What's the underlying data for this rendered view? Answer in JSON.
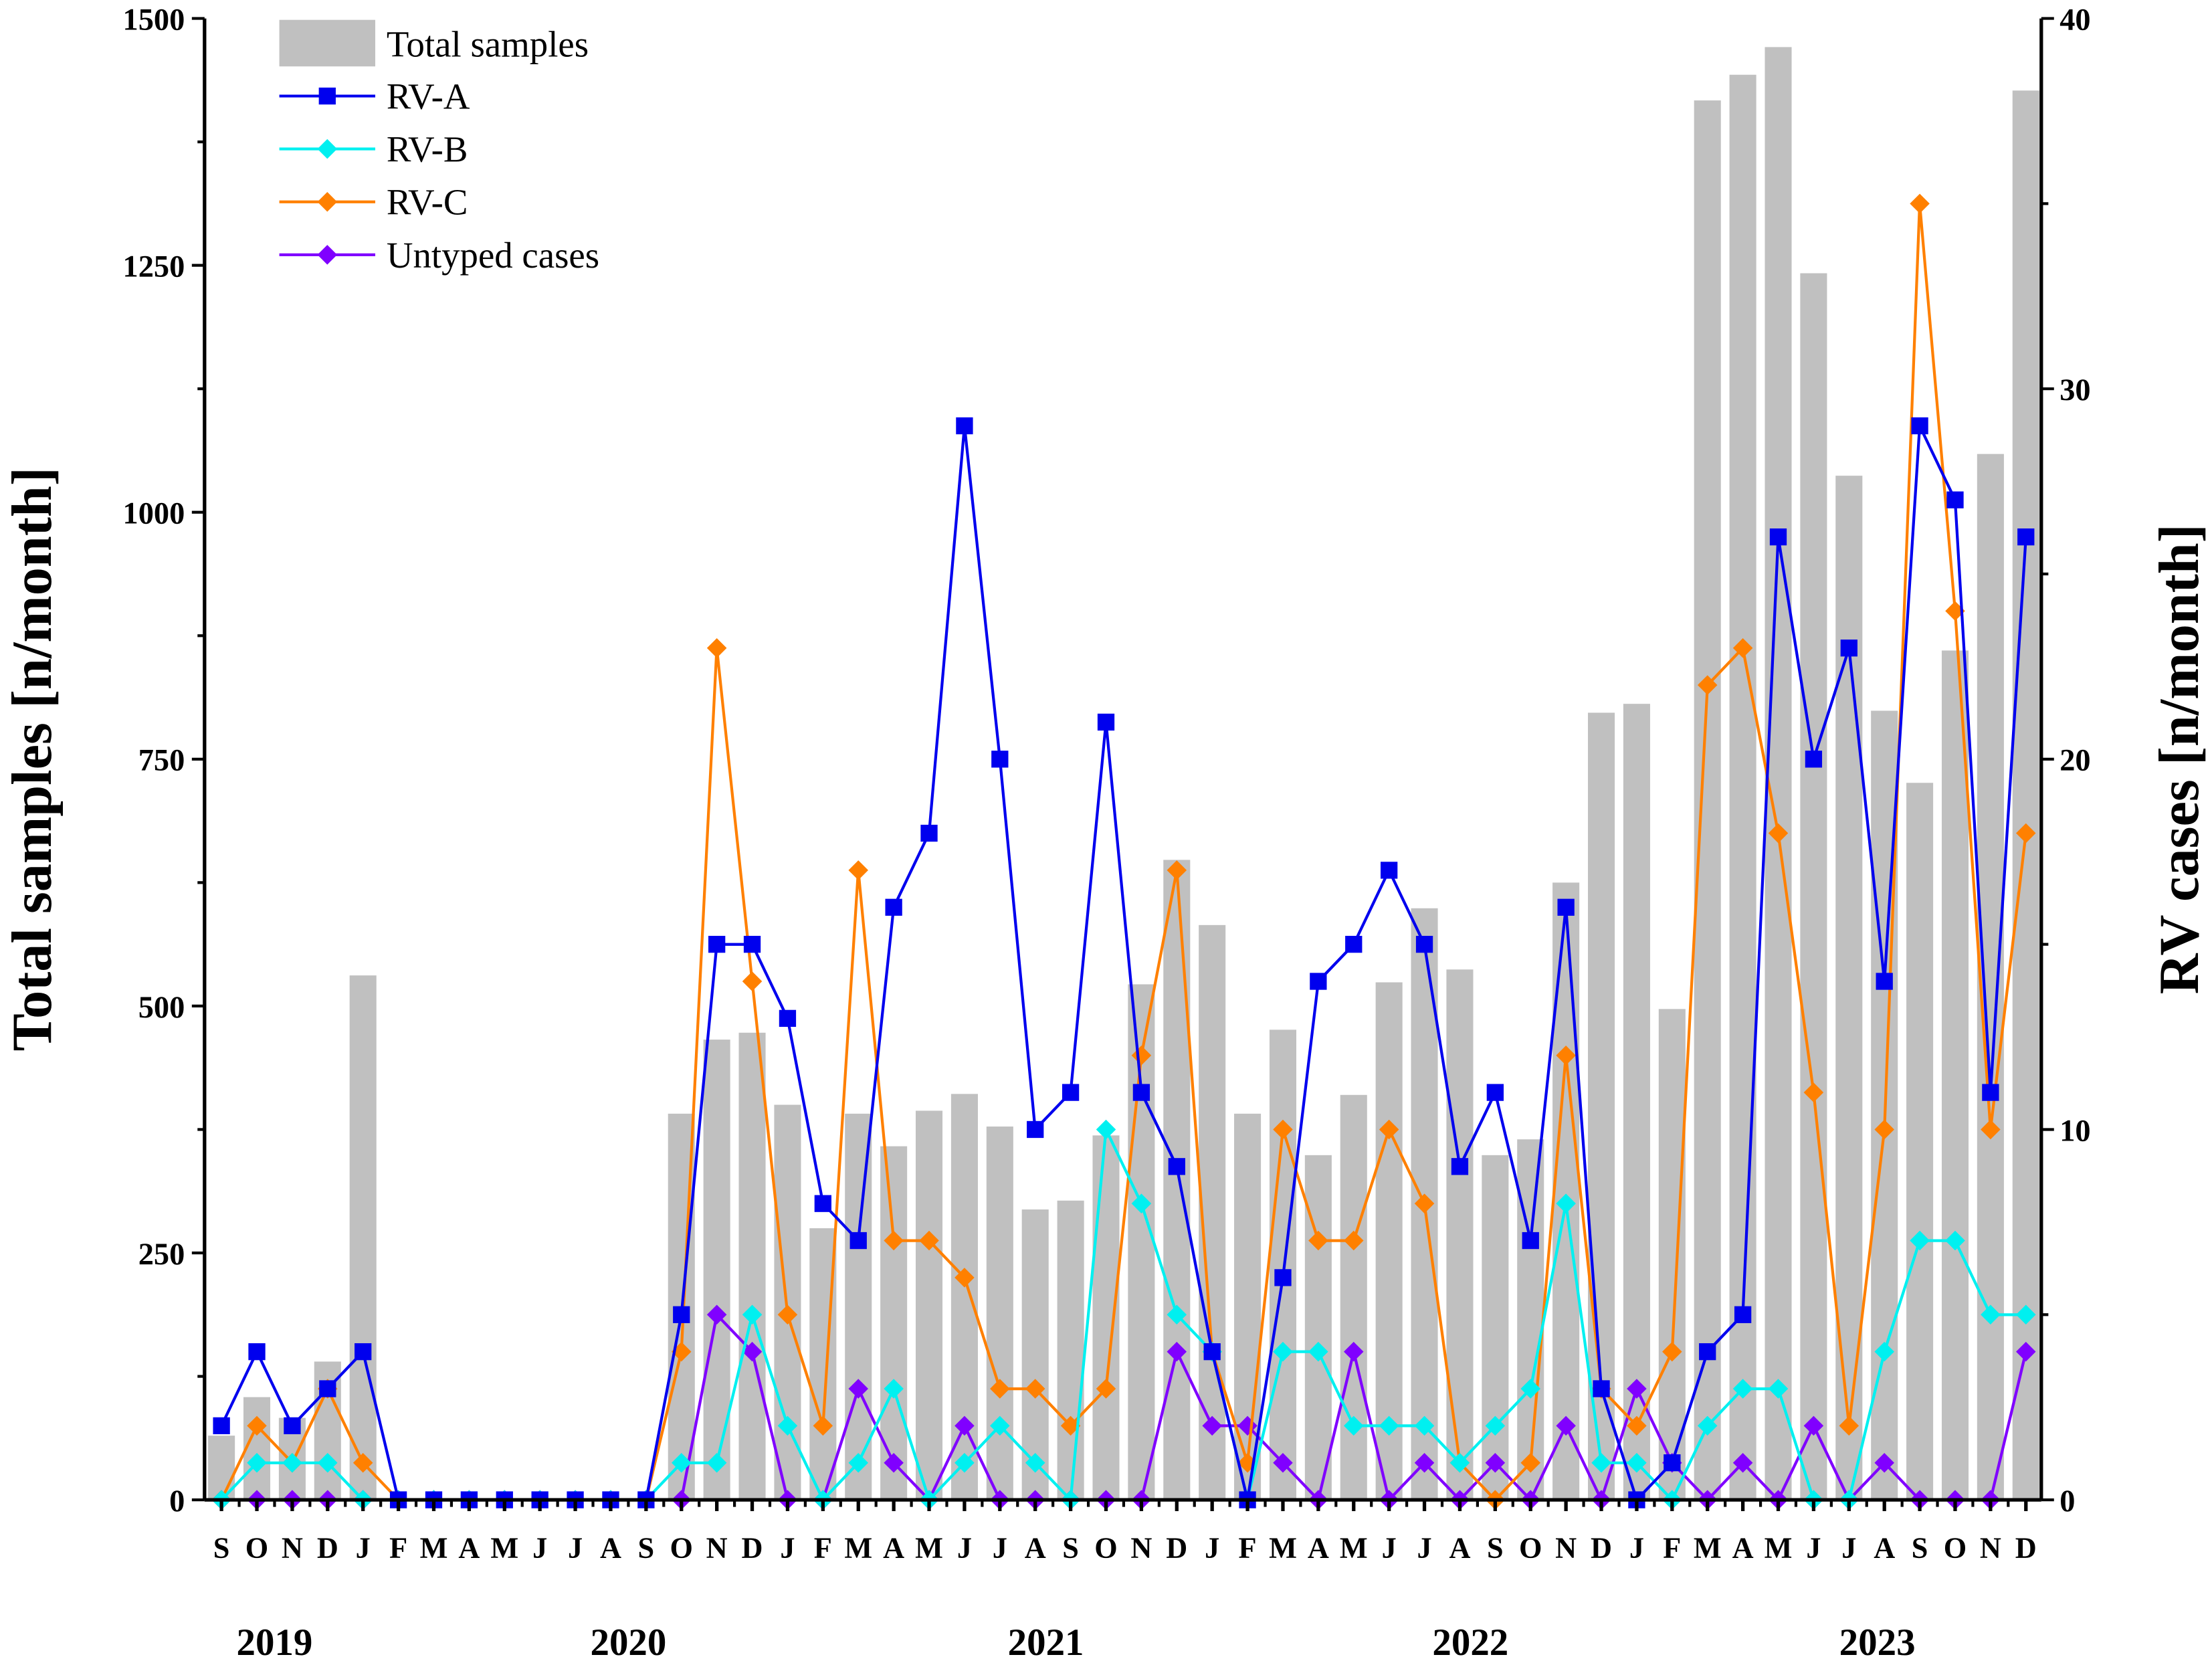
{
  "chart_data": {
    "type": "bar+line",
    "title": "",
    "legend_position": "top-left",
    "grid": false,
    "xlabel": "",
    "ylabel_left": "Total samples [n/month]",
    "ylabel_right": "RV cases [n/month]",
    "ylim_left": [
      0,
      1500
    ],
    "ylim_right": [
      0,
      40
    ],
    "yticks_left": [
      "0",
      "250",
      "500",
      "750",
      "1000",
      "1250",
      "1500"
    ],
    "yticks_right": [
      "0",
      "10",
      "20",
      "30",
      "40"
    ],
    "years": [
      {
        "label": "2019",
        "center_index": 1.5
      },
      {
        "label": "2020",
        "center_index": 11.5
      },
      {
        "label": "2021",
        "center_index": 23.3
      },
      {
        "label": "2022",
        "center_index": 35.3
      },
      {
        "label": "2023",
        "center_index": 46.8
      }
    ],
    "categories": [
      "S",
      "O",
      "N",
      "D",
      "J",
      "F",
      "M",
      "A",
      "M",
      "J",
      "J",
      "A",
      "S",
      "O",
      "N",
      "D",
      "J",
      "F",
      "M",
      "A",
      "M",
      "J",
      "J",
      "A",
      "S",
      "O",
      "N",
      "D",
      "J",
      "F",
      "M",
      "A",
      "M",
      "J",
      "J",
      "A",
      "S",
      "O",
      "N",
      "D",
      "J",
      "F",
      "M",
      "A",
      "M",
      "J",
      "J",
      "A",
      "S",
      "O",
      "N",
      "D"
    ],
    "bars": {
      "name": "Total samples",
      "axis": "left",
      "color": "#c0c0c0",
      "values": [
        65,
        104,
        83,
        140,
        531,
        0,
        0,
        0,
        0,
        0,
        0,
        0,
        0,
        391,
        466,
        473,
        400,
        275,
        391,
        358,
        394,
        411,
        378,
        294,
        303,
        369,
        522,
        648,
        582,
        391,
        476,
        349,
        410,
        524,
        599,
        537,
        349,
        365,
        625,
        797,
        806,
        497,
        1417,
        1443,
        1471,
        1242,
        1037,
        799,
        726,
        860,
        1059,
        1427
      ]
    },
    "series": [
      {
        "name": "RV-A",
        "axis": "right",
        "color": "#0000ee",
        "marker": "square",
        "values": [
          2,
          4,
          2,
          3,
          4,
          0,
          0,
          0,
          0,
          0,
          0,
          0,
          0,
          5,
          15,
          15,
          13,
          8,
          7,
          16,
          18,
          29,
          20,
          10,
          11,
          21,
          11,
          9,
          4,
          0,
          6,
          14,
          15,
          17,
          15,
          9,
          11,
          7,
          16,
          3,
          0,
          1,
          4,
          5,
          26,
          20,
          23,
          14,
          29,
          27,
          11,
          26
        ]
      },
      {
        "name": "RV-B",
        "axis": "right",
        "color": "#00f0f0",
        "marker": "diamond",
        "values": [
          0,
          1,
          1,
          1,
          0,
          0,
          0,
          0,
          0,
          0,
          0,
          0,
          0,
          1,
          1,
          5,
          2,
          0,
          1,
          3,
          0,
          1,
          2,
          1,
          0,
          10,
          8,
          5,
          4,
          0,
          4,
          4,
          2,
          2,
          2,
          1,
          2,
          3,
          8,
          1,
          1,
          0,
          2,
          3,
          3,
          0,
          0,
          4,
          7,
          7,
          5,
          5
        ]
      },
      {
        "name": "RV-C",
        "axis": "right",
        "color": "#ff8000",
        "marker": "diamond",
        "values": [
          0,
          2,
          1,
          3,
          1,
          0,
          0,
          0,
          0,
          0,
          0,
          0,
          0,
          4,
          23,
          14,
          5,
          2,
          17,
          7,
          7,
          6,
          3,
          3,
          2,
          3,
          12,
          17,
          4,
          1,
          10,
          7,
          7,
          10,
          8,
          1,
          0,
          1,
          12,
          3,
          2,
          4,
          22,
          23,
          18,
          11,
          2,
          10,
          35,
          24,
          10,
          18
        ]
      },
      {
        "name": "Untyped cases",
        "axis": "right",
        "color": "#8000ff",
        "marker": "diamond",
        "values": [
          0,
          0,
          0,
          0,
          0,
          0,
          0,
          0,
          0,
          0,
          0,
          0,
          0,
          0,
          5,
          4,
          0,
          0,
          3,
          1,
          0,
          2,
          0,
          0,
          0,
          0,
          0,
          4,
          2,
          2,
          1,
          0,
          4,
          0,
          1,
          0,
          1,
          0,
          2,
          0,
          3,
          1,
          0,
          1,
          0,
          2,
          0,
          1,
          0,
          0,
          0,
          4
        ]
      }
    ]
  }
}
